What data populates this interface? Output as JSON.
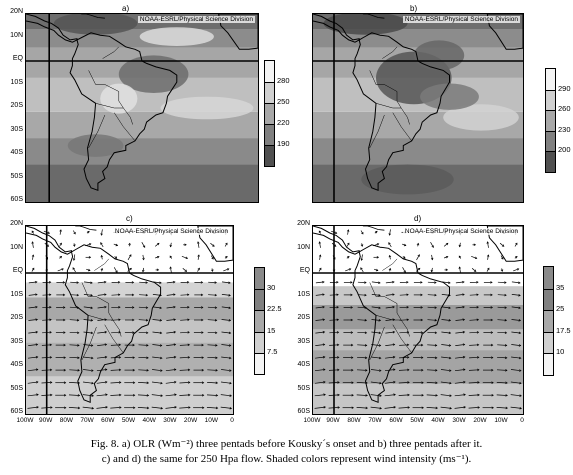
{
  "panels": [
    {
      "id": "a",
      "label": "a)",
      "credit": "NOAA-ESRL/Physical Science Division",
      "kind": "olr",
      "y_ticks": [
        "20N",
        "10N",
        "EQ",
        "10S",
        "20S",
        "30S",
        "40S",
        "50S",
        "60S"
      ],
      "x_ticks": [],
      "colorbar": [
        "280",
        "250",
        "220",
        "190"
      ]
    },
    {
      "id": "b",
      "label": "b)",
      "credit": "NOAA-ESRL/Physical Science Division",
      "kind": "olr",
      "y_ticks": [],
      "x_ticks": [],
      "colorbar": [
        "290",
        "260",
        "230",
        "200"
      ]
    },
    {
      "id": "c",
      "label": "c)",
      "credit": "NOAA-ESRL/Physical Science Division",
      "kind": "wind",
      "y_ticks": [
        "20N",
        "10N",
        "EQ",
        "10S",
        "20S",
        "30S",
        "40S",
        "50S",
        "60S"
      ],
      "x_ticks": [
        "100W",
        "90W",
        "80W",
        "70W",
        "60W",
        "50W",
        "40W",
        "30W",
        "20W",
        "10W",
        "0"
      ],
      "colorbar": [
        "30",
        "22.5",
        "15",
        "7.5"
      ]
    },
    {
      "id": "d",
      "label": "d)",
      "credit": "NOAA-ESRL/Physical Science Division",
      "kind": "wind",
      "y_ticks": [
        "20N",
        "10N",
        "EQ",
        "10S",
        "20S",
        "30S",
        "40S",
        "50S",
        "60S"
      ],
      "x_ticks": [
        "100W",
        "90W",
        "80W",
        "70W",
        "60W",
        "50W",
        "40W",
        "30W",
        "20W",
        "10W",
        "0"
      ],
      "colorbar": [
        "35",
        "25",
        "17.5",
        "10"
      ]
    }
  ],
  "caption": {
    "line1": "Fig. 8. a) OLR (Wm⁻²) three pentads before Kousky´s onset  and b) three pentads after it.",
    "line2": "c) and d) the same for 250 Hpa flow. Shaded colors represent wind intensity (ms⁻¹)."
  }
}
